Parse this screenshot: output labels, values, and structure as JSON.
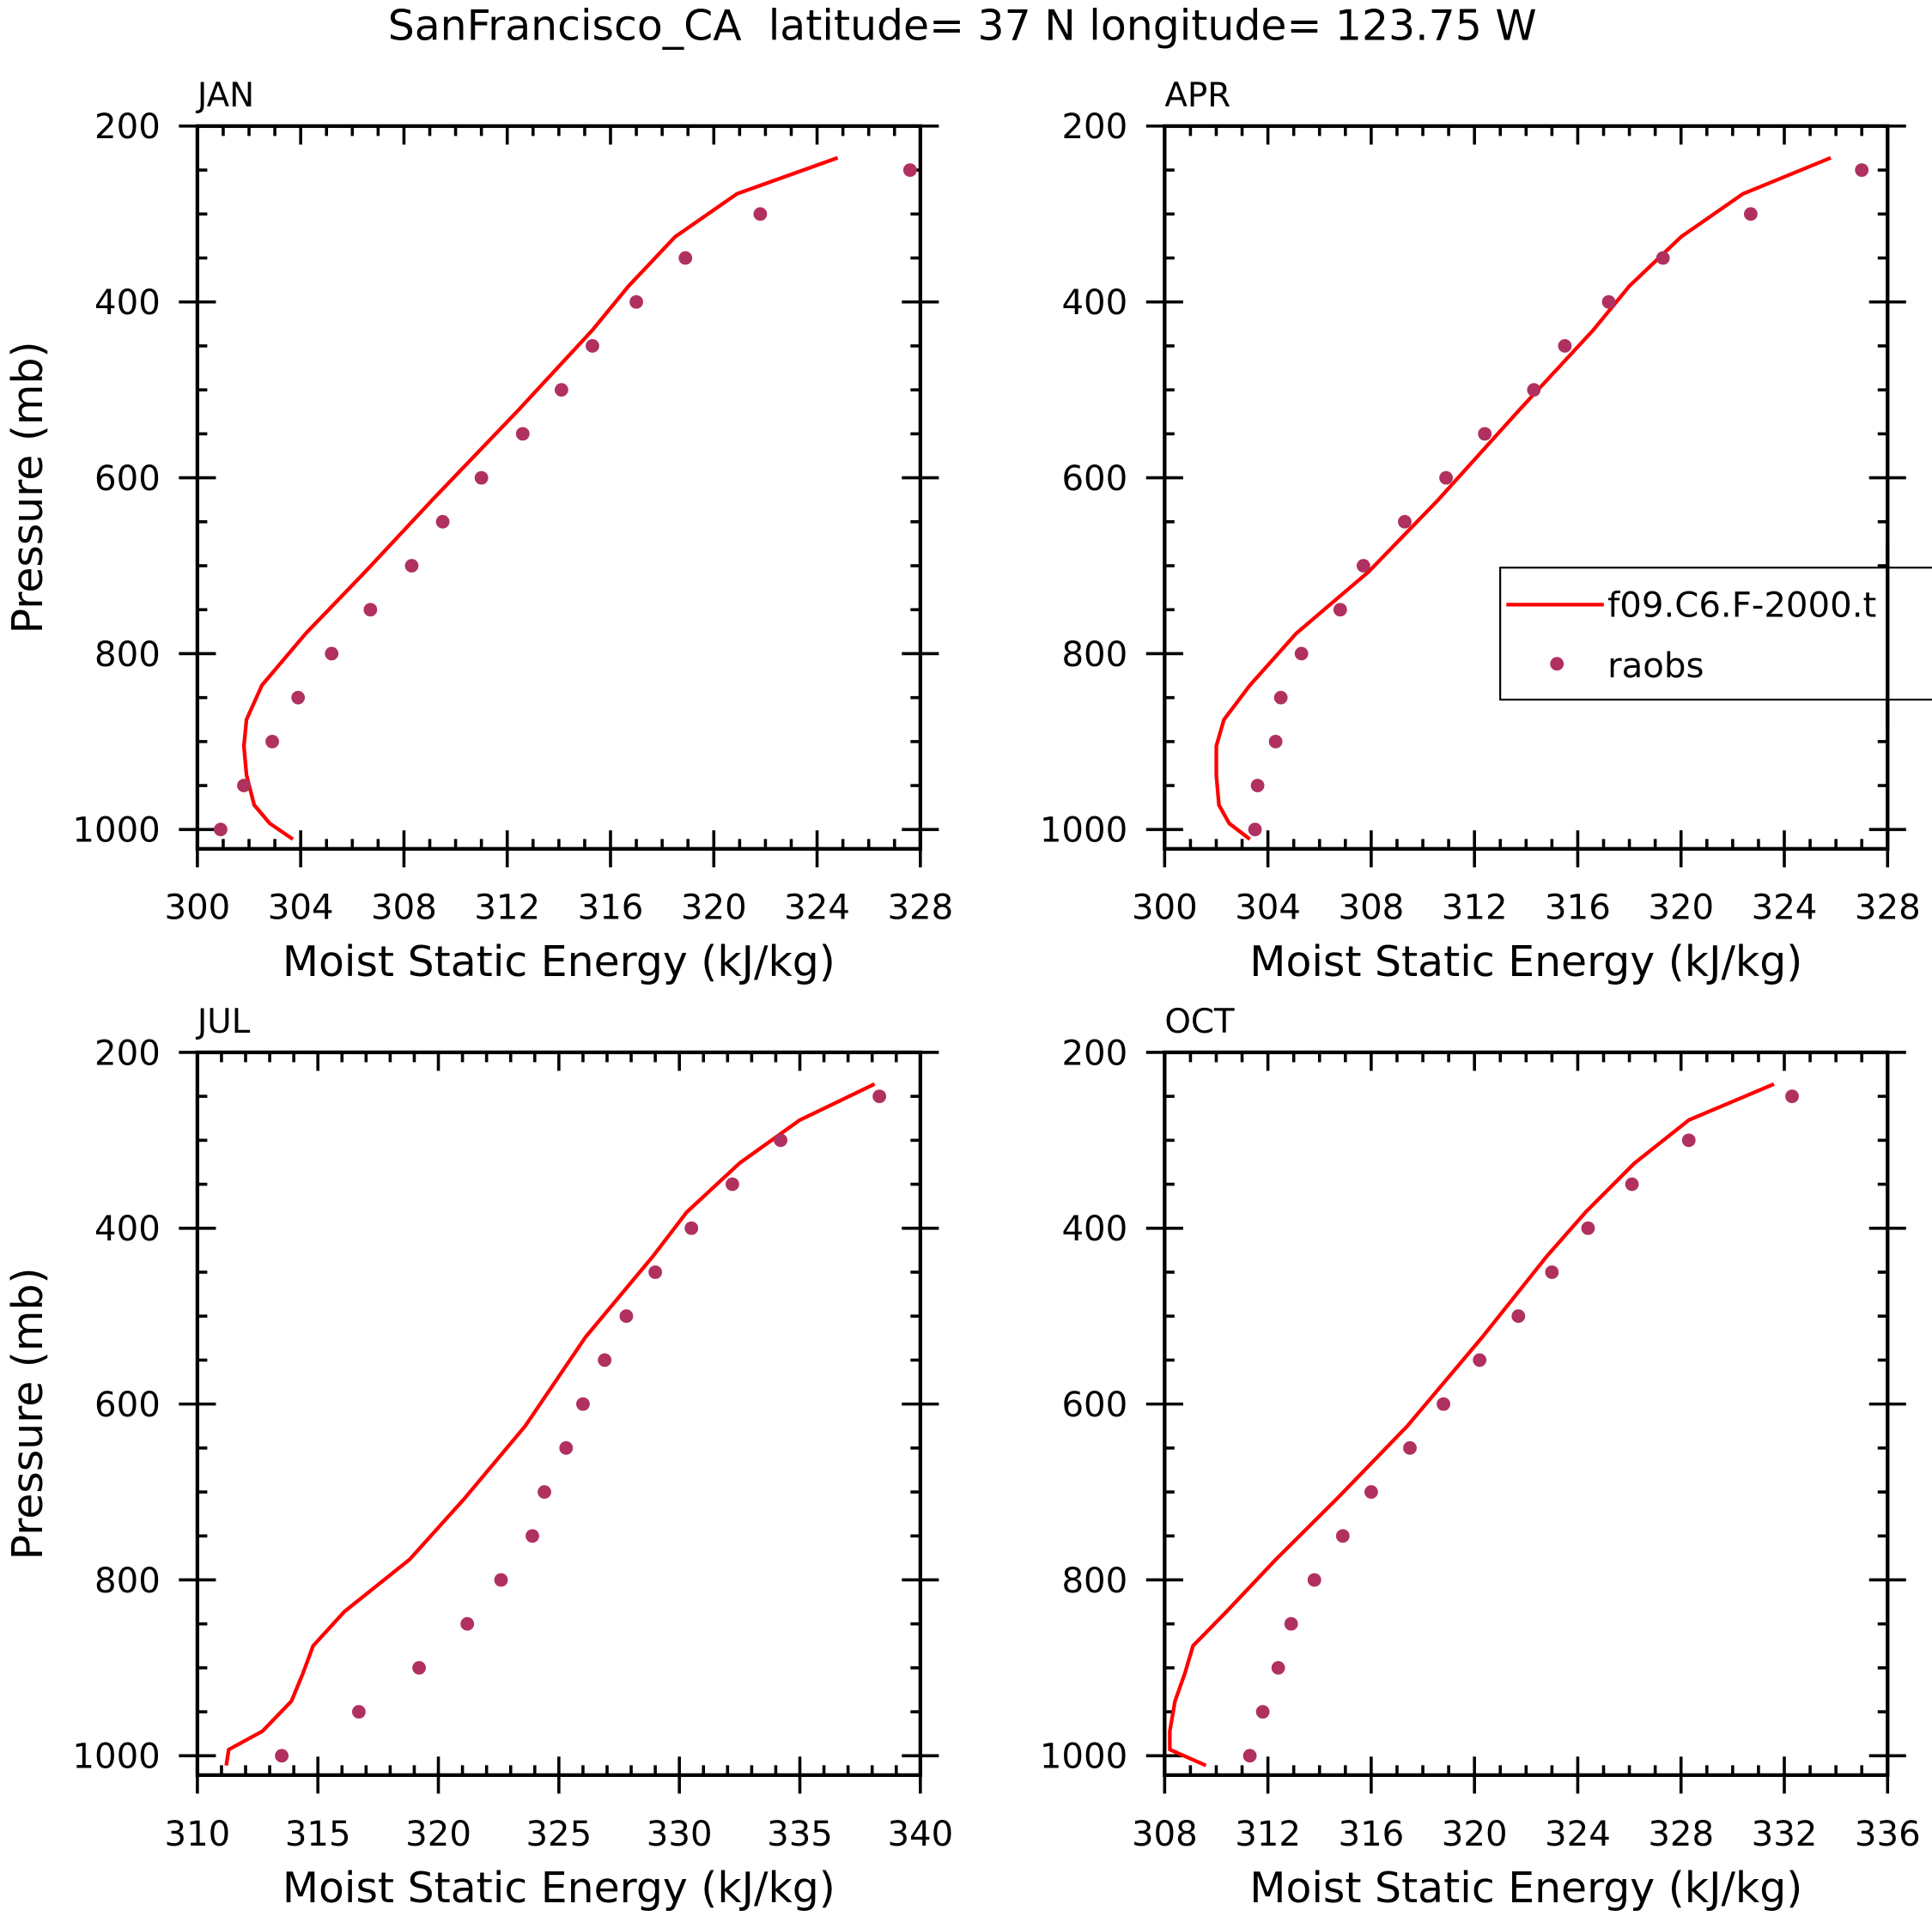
{
  "title": "SanFrancisco_CA  latitude= 37 N longitude= 123.75 W",
  "colors": {
    "model": "#ff0000",
    "obs": "#b03060",
    "axis": "#000000"
  },
  "legend": {
    "model_label": "f09.C6.F-2000.t",
    "obs_label": "raobs",
    "placement": "right of APR panel"
  },
  "chart_data": [
    {
      "type": "line+scatter",
      "panel_label": "JAN",
      "xlabel": "Moist Static Energy (kJ/kg)",
      "ylabel": "Pressure (mb)",
      "xlim": [
        300,
        328
      ],
      "xmajor": 4,
      "xminor": 1,
      "ylim": [
        200,
        1022
      ],
      "yticks": [
        200,
        400,
        600,
        800,
        1000
      ],
      "yminor": 50,
      "model": {
        "p": [
          236,
          277,
          326,
          382,
          432,
          524,
          625,
          707,
          777,
          836,
          875,
          905,
          938,
          972,
          993,
          1011
        ],
        "mse": [
          324.8,
          320.9,
          318.5,
          316.7,
          315.3,
          312.4,
          309.1,
          306.5,
          304.2,
          302.5,
          301.9,
          301.8,
          301.9,
          302.2,
          302.8,
          303.7
        ]
      },
      "raobs": {
        "p": [
          250,
          300,
          350,
          400,
          450,
          500,
          550,
          600,
          650,
          700,
          750,
          800,
          850,
          900,
          950,
          1000
        ],
        "mse": [
          327.6,
          321.8,
          318.9,
          317.0,
          315.3,
          314.1,
          312.6,
          311.0,
          309.5,
          308.3,
          306.7,
          305.2,
          303.9,
          302.9,
          301.8,
          300.9
        ]
      }
    },
    {
      "type": "line+scatter",
      "panel_label": "APR",
      "xlabel": "Moist Static Energy (kJ/kg)",
      "ylabel": "",
      "xlim": [
        300,
        328
      ],
      "xmajor": 4,
      "xminor": 1,
      "ylim": [
        200,
        1022
      ],
      "yticks": [
        200,
        400,
        600,
        800,
        1000
      ],
      "yminor": 50,
      "model": {
        "p": [
          236,
          277,
          326,
          382,
          432,
          524,
          625,
          707,
          777,
          836,
          875,
          905,
          938,
          972,
          993,
          1011
        ],
        "mse": [
          325.8,
          322.4,
          320.0,
          318.0,
          316.6,
          313.7,
          310.6,
          307.9,
          305.1,
          303.3,
          302.3,
          302.0,
          302.0,
          302.1,
          302.5,
          303.3
        ]
      },
      "raobs": {
        "p": [
          250,
          300,
          350,
          400,
          450,
          500,
          550,
          600,
          650,
          700,
          750,
          800,
          850,
          900,
          950,
          1000
        ],
        "mse": [
          327.0,
          322.7,
          319.3,
          317.2,
          315.5,
          314.3,
          312.4,
          310.9,
          309.3,
          307.7,
          306.8,
          305.3,
          304.5,
          304.3,
          303.6,
          303.5
        ]
      }
    },
    {
      "type": "line+scatter",
      "panel_label": "JUL",
      "xlabel": "Moist Static Energy (kJ/kg)",
      "ylabel": "Pressure (mb)",
      "xlim": [
        310,
        340
      ],
      "xmajor": 5,
      "xminor": 1,
      "ylim": [
        200,
        1022
      ],
      "yticks": [
        200,
        400,
        600,
        800,
        1000
      ],
      "yminor": 50,
      "model": {
        "p": [
          236,
          277,
          326,
          382,
          432,
          524,
          625,
          707,
          777,
          836,
          875,
          905,
          938,
          972,
          993,
          1011
        ],
        "mse": [
          338.1,
          335.0,
          332.5,
          330.3,
          328.9,
          326.1,
          323.6,
          321.1,
          318.8,
          316.1,
          314.8,
          314.4,
          313.9,
          312.7,
          311.3,
          311.2
        ]
      },
      "raobs": {
        "p": [
          250,
          300,
          350,
          400,
          450,
          500,
          550,
          600,
          650,
          700,
          750,
          800,
          850,
          900,
          950,
          1000
        ],
        "mse": [
          338.3,
          334.2,
          332.2,
          330.5,
          329.0,
          327.8,
          326.9,
          326.0,
          325.3,
          324.4,
          323.9,
          322.6,
          321.2,
          319.2,
          316.7,
          313.5
        ]
      }
    },
    {
      "type": "line+scatter",
      "panel_label": "OCT",
      "xlabel": "Moist Static Energy (kJ/kg)",
      "ylabel": "",
      "xlim": [
        308,
        336
      ],
      "xmajor": 4,
      "xminor": 1,
      "ylim": [
        200,
        1022
      ],
      "yticks": [
        200,
        400,
        600,
        800,
        1000
      ],
      "yminor": 50,
      "model": {
        "p": [
          236,
          277,
          326,
          382,
          432,
          524,
          625,
          707,
          777,
          836,
          875,
          905,
          938,
          972,
          993,
          1011
        ],
        "mse": [
          331.6,
          328.3,
          326.2,
          324.3,
          322.8,
          320.3,
          317.4,
          314.7,
          312.3,
          310.4,
          309.1,
          308.8,
          308.4,
          308.2,
          308.2,
          309.6
        ]
      },
      "raobs": {
        "p": [
          250,
          300,
          350,
          400,
          450,
          500,
          550,
          600,
          650,
          700,
          750,
          800,
          850,
          900,
          950,
          1000
        ],
        "mse": [
          332.3,
          328.3,
          326.1,
          324.4,
          323.0,
          321.7,
          320.2,
          318.8,
          317.5,
          316.0,
          314.9,
          313.8,
          312.9,
          312.4,
          311.8,
          311.3
        ]
      }
    }
  ]
}
